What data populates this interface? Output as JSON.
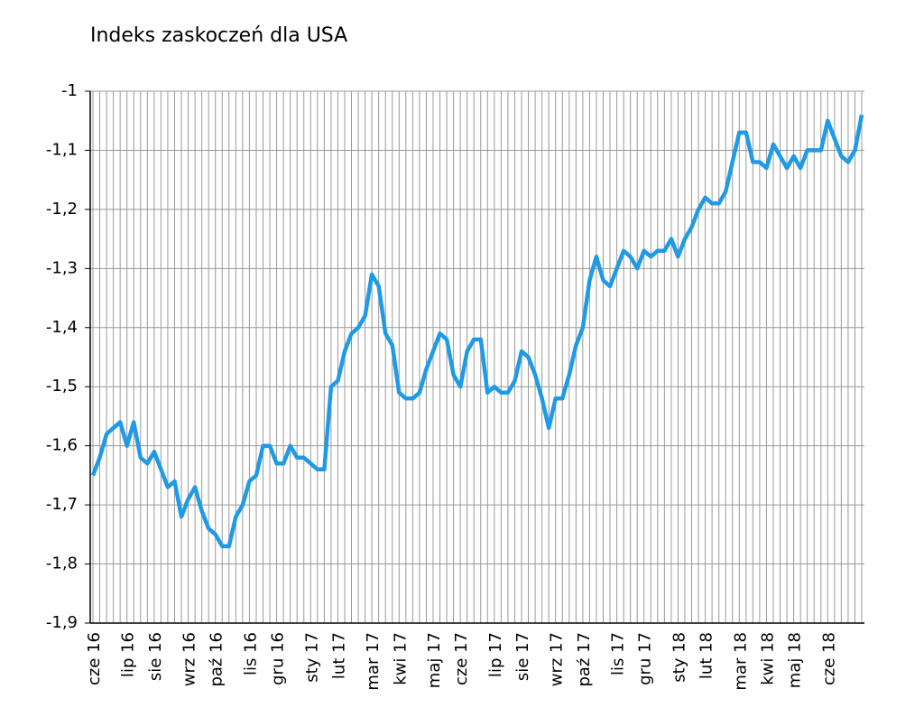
{
  "chart_data": {
    "type": "line",
    "title": "Indeks zaskoczeń dla USA",
    "categories": [
      "cze 16",
      null,
      null,
      null,
      null,
      "lip 16",
      null,
      null,
      null,
      "sie 16",
      null,
      null,
      null,
      null,
      "wrz 16",
      null,
      null,
      null,
      "paź 16",
      null,
      null,
      null,
      null,
      "lis 16",
      null,
      null,
      null,
      "gru 16",
      null,
      null,
      null,
      null,
      "sty 17",
      null,
      null,
      null,
      "lut 17",
      null,
      null,
      null,
      null,
      "mar 17",
      null,
      null,
      null,
      "kwi 17",
      null,
      null,
      null,
      null,
      "maj 17",
      null,
      null,
      null,
      "cze 17",
      null,
      null,
      null,
      null,
      "lip 17",
      null,
      null,
      null,
      "sie 17",
      null,
      null,
      null,
      null,
      "wrz 17",
      null,
      null,
      null,
      "paź 17",
      null,
      null,
      null,
      null,
      "lis 17",
      null,
      null,
      null,
      "gru 17",
      null,
      null,
      null,
      null,
      "sty 18",
      null,
      null,
      null,
      "lut 18",
      null,
      null,
      null,
      null,
      "mar 18",
      null,
      null,
      null,
      "kwi 18",
      null,
      null,
      null,
      "maj 18",
      null,
      null,
      null,
      null,
      "cze 18",
      null,
      null,
      null,
      null,
      null
    ],
    "series": [
      {
        "color": "#1f9ae6",
        "values": [
          -1.65,
          -1.62,
          -1.58,
          -1.57,
          -1.56,
          -1.6,
          -1.56,
          -1.62,
          -1.63,
          -1.61,
          -1.64,
          -1.67,
          -1.66,
          -1.72,
          -1.69,
          -1.67,
          -1.71,
          -1.74,
          -1.75,
          -1.77,
          -1.77,
          -1.72,
          -1.7,
          -1.66,
          -1.65,
          -1.6,
          -1.6,
          -1.63,
          -1.63,
          -1.6,
          -1.62,
          -1.62,
          -1.63,
          -1.64,
          -1.64,
          -1.5,
          -1.49,
          -1.44,
          -1.41,
          -1.4,
          -1.38,
          -1.31,
          -1.33,
          -1.41,
          -1.43,
          -1.51,
          -1.52,
          -1.52,
          -1.51,
          -1.47,
          -1.44,
          -1.41,
          -1.42,
          -1.48,
          -1.5,
          -1.44,
          -1.42,
          -1.42,
          -1.51,
          -1.5,
          -1.51,
          -1.51,
          -1.49,
          -1.44,
          -1.45,
          -1.48,
          -1.52,
          -1.57,
          -1.52,
          -1.52,
          -1.48,
          -1.43,
          -1.4,
          -1.32,
          -1.28,
          -1.32,
          -1.33,
          -1.3,
          -1.27,
          -1.28,
          -1.3,
          -1.27,
          -1.28,
          -1.27,
          -1.27,
          -1.25,
          -1.28,
          -1.25,
          -1.23,
          -1.2,
          -1.18,
          -1.19,
          -1.19,
          -1.17,
          -1.12,
          -1.07,
          -1.07,
          -1.12,
          -1.12,
          -1.13,
          -1.09,
          -1.11,
          -1.13,
          -1.11,
          -1.13,
          -1.1,
          -1.1,
          -1.1,
          -1.05,
          -1.08,
          -1.11,
          -1.12,
          -1.1,
          -1.04
        ]
      }
    ],
    "ylim": [
      -1.9,
      -1
    ],
    "yticks": [
      -1,
      {
        "value": -1.1,
        "label": "-1,1"
      },
      {
        "value": -1.2,
        "label": "-1,2"
      },
      {
        "value": -1.3,
        "label": "-1,3"
      },
      {
        "value": -1.4,
        "label": "-1,4"
      },
      {
        "value": -1.5,
        "label": "-1,5"
      },
      {
        "value": -1.6,
        "label": "-1,6"
      },
      {
        "value": -1.7,
        "label": "-1,7"
      },
      {
        "value": -1.8,
        "label": "-1,8"
      },
      {
        "value": -1.9,
        "label": "-1,9"
      }
    ],
    "grid": true
  }
}
